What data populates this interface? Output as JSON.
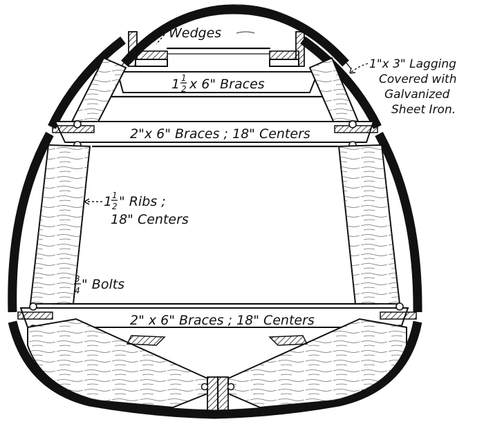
{
  "labels": {
    "wedges": "Wedges",
    "top_braces": "x 6\" Braces",
    "top_braces_frac": {
      "whole": "1",
      "num": "1",
      "den": "2"
    },
    "mid_braces": "2\"x 6\" Braces ; 18\" Centers",
    "bottom_braces": "2\" x 6\" Braces ; 18\" Centers",
    "lagging_lines": [
      "1\"x 3\" Lagging",
      "Covered with",
      "Galvanized",
      "Sheet Iron."
    ],
    "ribs_line1": "\" Ribs ;",
    "ribs_line2": "18\" Centers",
    "ribs_frac": {
      "whole": "1",
      "num": "1",
      "den": "2"
    },
    "bolts": "\" Bolts",
    "bolts_frac": {
      "num": "3",
      "den": "4"
    }
  },
  "colors": {
    "ink": "#111111",
    "paper": "#ffffff"
  }
}
